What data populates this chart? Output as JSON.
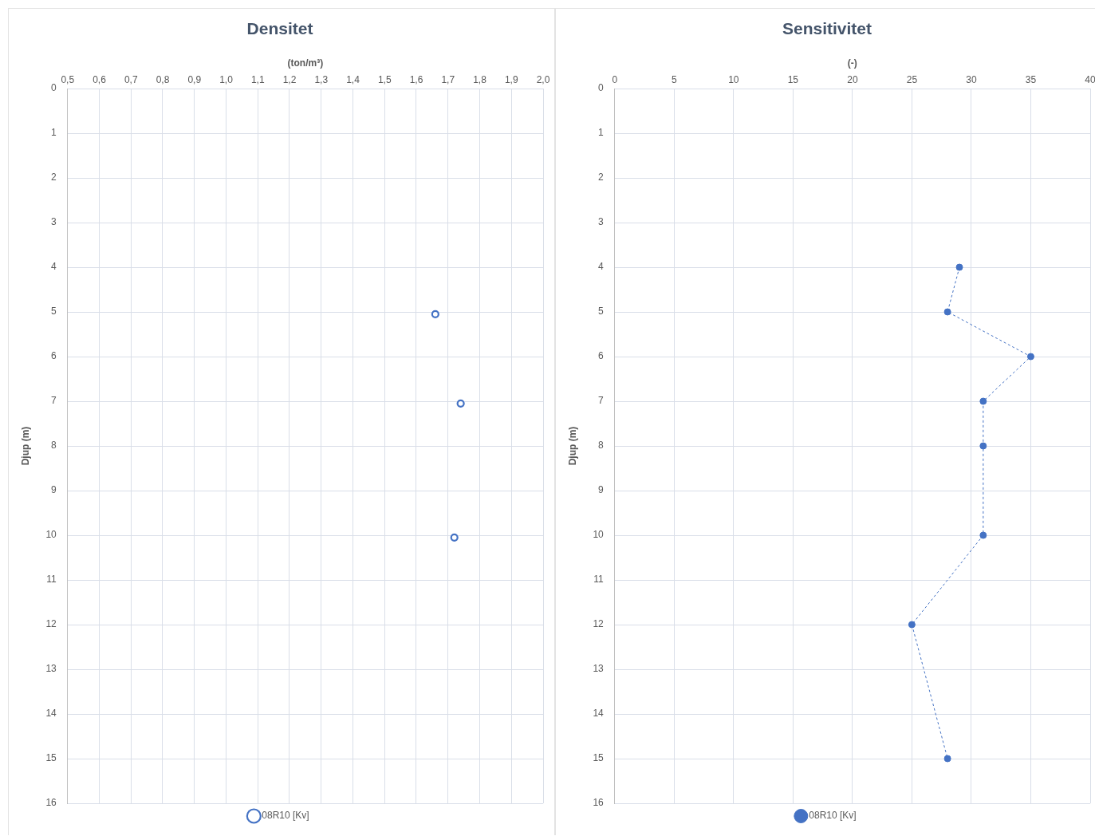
{
  "chart_data": [
    {
      "type": "scatter",
      "title": "Densitet",
      "xlabel": "(ton/m³)",
      "ylabel": "Djup (m)",
      "xlim": [
        0.5,
        2.0
      ],
      "xticks": [
        {
          "value": 0.5,
          "label": "0,5"
        },
        {
          "value": 0.6,
          "label": "0,6"
        },
        {
          "value": 0.7,
          "label": "0,7"
        },
        {
          "value": 0.8,
          "label": "0,8"
        },
        {
          "value": 0.9,
          "label": "0,9"
        },
        {
          "value": 1.0,
          "label": "1,0"
        },
        {
          "value": 1.1,
          "label": "1,1"
        },
        {
          "value": 1.2,
          "label": "1,2"
        },
        {
          "value": 1.3,
          "label": "1,3"
        },
        {
          "value": 1.4,
          "label": "1,4"
        },
        {
          "value": 1.5,
          "label": "1,5"
        },
        {
          "value": 1.6,
          "label": "1,6"
        },
        {
          "value": 1.7,
          "label": "1,7"
        },
        {
          "value": 1.8,
          "label": "1,8"
        },
        {
          "value": 1.9,
          "label": "1,9"
        },
        {
          "value": 2.0,
          "label": "2,0"
        }
      ],
      "ylim": [
        16,
        0
      ],
      "yticks": [
        0,
        1,
        2,
        3,
        4,
        5,
        6,
        7,
        8,
        9,
        10,
        11,
        12,
        13,
        14,
        15,
        16
      ],
      "grid": true,
      "legend": "bottom",
      "marker": "circle",
      "series": [
        {
          "name": "08R10 [Kv]",
          "color": "#4472c4",
          "x": [
            1.66,
            1.74,
            1.72
          ],
          "values": [
            5.05,
            7.05,
            10.05
          ]
        }
      ]
    },
    {
      "type": "line",
      "title": "Sensitivitet",
      "xlabel": "(-)",
      "ylabel": "Djup (m)",
      "xlim": [
        0,
        40
      ],
      "xticks": [
        0,
        5,
        10,
        15,
        20,
        25,
        30,
        35,
        40
      ],
      "ylim": [
        16,
        0
      ],
      "yticks": [
        0,
        1,
        2,
        3,
        4,
        5,
        6,
        7,
        8,
        9,
        10,
        11,
        12,
        13,
        14,
        15,
        16
      ],
      "grid": true,
      "legend": "bottom",
      "marker": "circle",
      "line_style": "dashed",
      "series": [
        {
          "name": "08R10 [Kv]",
          "color": "#4472c4",
          "x": [
            29,
            28,
            35,
            31,
            31,
            31,
            25,
            28
          ],
          "values": [
            4,
            5,
            6,
            7,
            8,
            10,
            12,
            15
          ]
        }
      ]
    }
  ]
}
